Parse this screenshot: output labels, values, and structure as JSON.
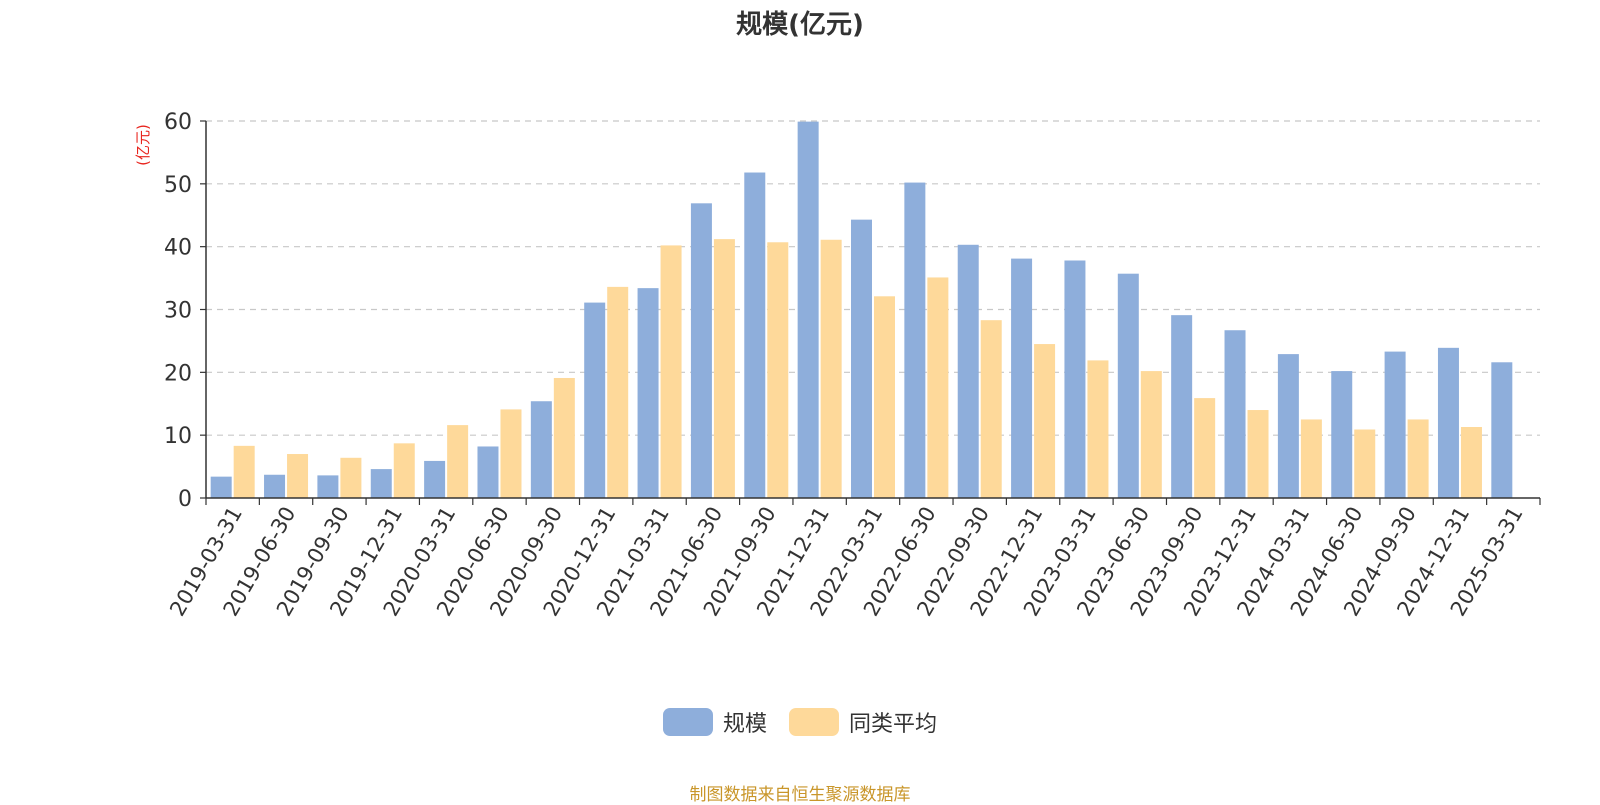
{
  "chart_data": {
    "type": "bar",
    "title": "规模(亿元)",
    "ylabel": "(亿元)",
    "xlabel": "",
    "ylim": [
      0,
      60
    ],
    "yticks": [
      0,
      10,
      20,
      30,
      40,
      50,
      60
    ],
    "grid": true,
    "legend_position": "bottom-center",
    "categories": [
      "2019-03-31",
      "2019-06-30",
      "2019-09-30",
      "2019-12-31",
      "2020-03-31",
      "2020-06-30",
      "2020-09-30",
      "2020-12-31",
      "2021-03-31",
      "2021-06-30",
      "2021-09-30",
      "2021-12-31",
      "2022-03-31",
      "2022-06-30",
      "2022-09-30",
      "2022-12-31",
      "2023-03-31",
      "2023-06-30",
      "2023-09-30",
      "2023-12-31",
      "2024-03-31",
      "2024-06-30",
      "2024-09-30",
      "2024-12-31",
      "2025-03-31"
    ],
    "series": [
      {
        "name": "规模",
        "color": "#8eaedb",
        "values": [
          3.4,
          3.7,
          3.6,
          4.6,
          5.9,
          8.2,
          15.4,
          31.1,
          33.4,
          46.9,
          51.8,
          59.9,
          44.3,
          50.2,
          40.3,
          38.1,
          37.8,
          35.7,
          29.1,
          26.7,
          22.9,
          20.2,
          23.3,
          23.9,
          21.6
        ]
      },
      {
        "name": "同类平均",
        "color": "#fed99a",
        "values": [
          8.3,
          7.0,
          6.4,
          8.7,
          11.6,
          14.1,
          19.1,
          33.6,
          40.2,
          41.2,
          40.7,
          41.1,
          32.1,
          35.1,
          28.3,
          24.5,
          21.9,
          20.2,
          15.9,
          14.0,
          12.5,
          10.9,
          12.5,
          11.3,
          null
        ]
      }
    ]
  },
  "source_note": "制图数据来自恒生聚源数据库"
}
